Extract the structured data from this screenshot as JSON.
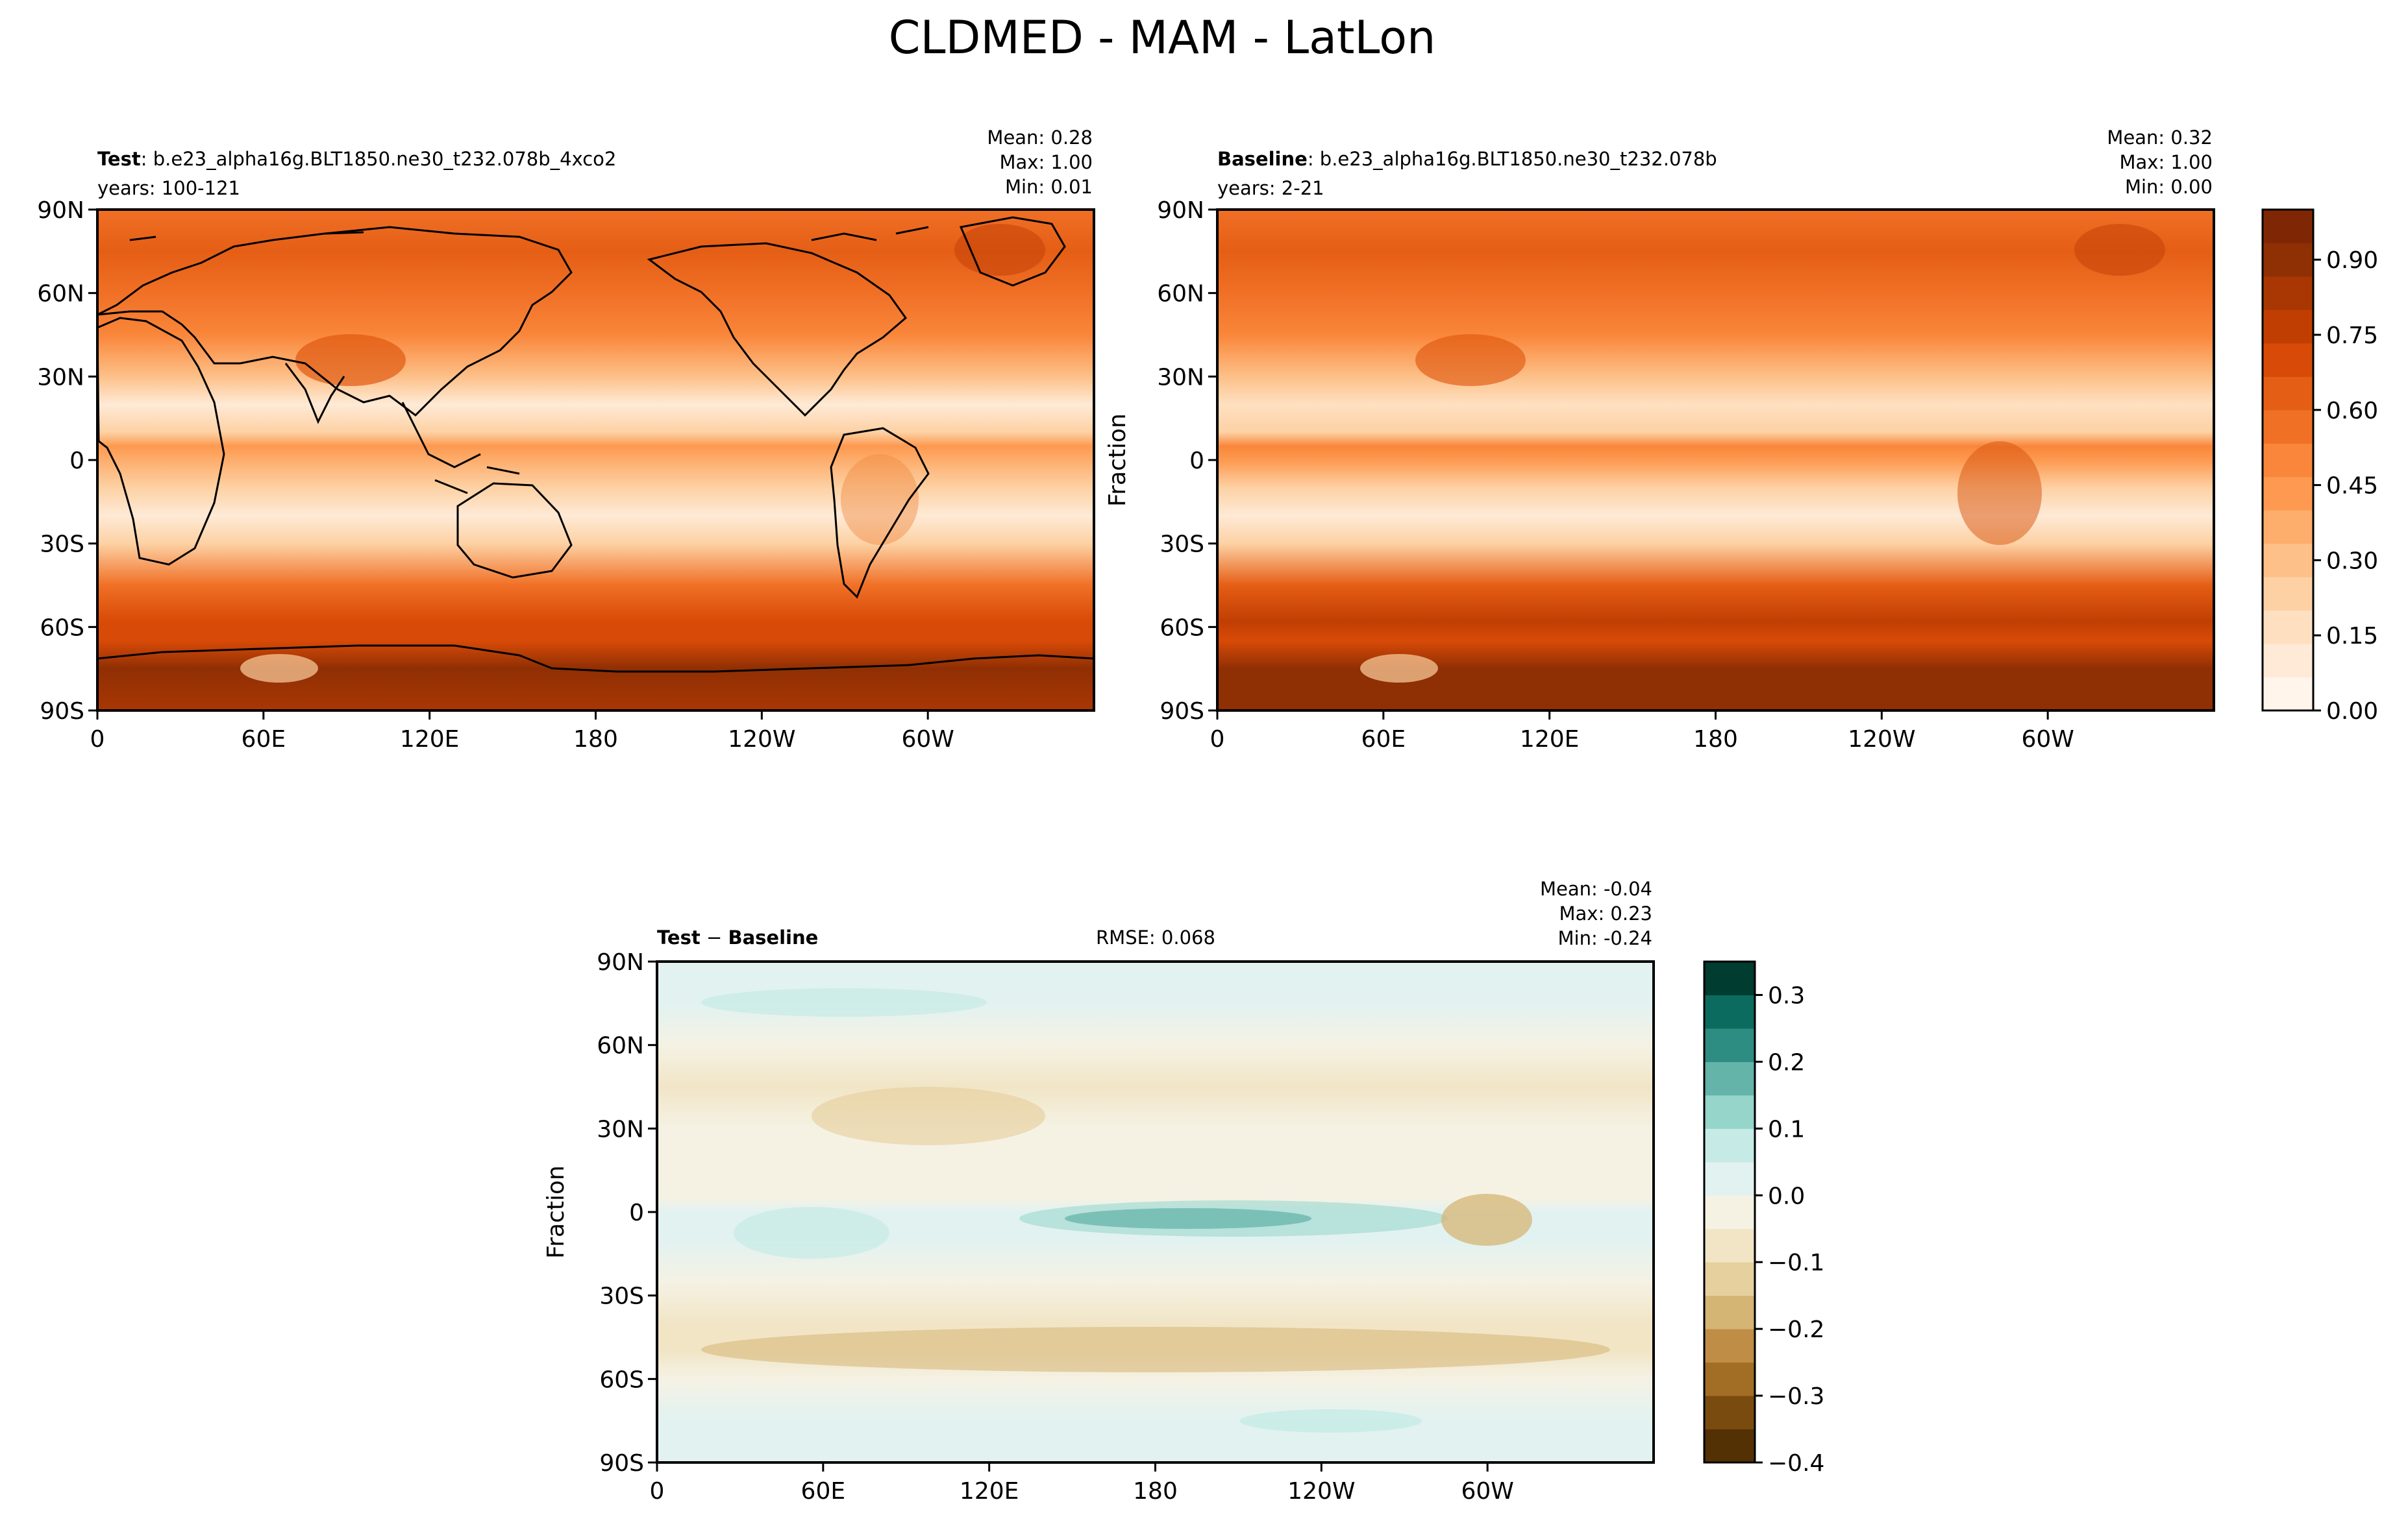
{
  "figure_title": "CLDMED - MAM - LatLon",
  "colors": {
    "seq": [
      "#fff5eb",
      "#feead6",
      "#fee0c1",
      "#fdd1a4",
      "#fdc088",
      "#fdad6c",
      "#fd9950",
      "#f9863a",
      "#f07026",
      "#e55e15",
      "#d84a07",
      "#c13e03",
      "#a93703",
      "#8f2f04",
      "#7f2704"
    ],
    "div": [
      "#543005",
      "#7a4b0f",
      "#a26d24",
      "#bf8d45",
      "#d5b574",
      "#e6d09e",
      "#f1e5c6",
      "#f5f2e4",
      "#e2f2f1",
      "#c6ebe6",
      "#96d5ca",
      "#64b4aa",
      "#2e8d83",
      "#0b6b5e",
      "#003c30"
    ]
  },
  "chart_data": [
    {
      "panel": "test",
      "type": "heatmap",
      "name_bold": "Test",
      "name_rest": ": b.e23_alpha16g.BLT1850.ne30_t232.078b_4xco2",
      "years": "years: 100-121",
      "stats": [
        "Mean:  0.28",
        "Max:  1.00",
        "Min:  0.01"
      ],
      "ylabel": "",
      "xticks": [
        "0",
        "60E",
        "120E",
        "180",
        "120W",
        "60W"
      ],
      "yticks": [
        "90N",
        "60N",
        "30N",
        "0",
        "30S",
        "60S",
        "90S"
      ],
      "vmin": 0,
      "vmax": 1,
      "zonal_profile": [
        {
          "lat": 90,
          "v": 0.55
        },
        {
          "lat": 75,
          "v": 0.62
        },
        {
          "lat": 60,
          "v": 0.57
        },
        {
          "lat": 45,
          "v": 0.48
        },
        {
          "lat": 30,
          "v": 0.28
        },
        {
          "lat": 20,
          "v": 0.1
        },
        {
          "lat": 10,
          "v": 0.22
        },
        {
          "lat": 5,
          "v": 0.45
        },
        {
          "lat": 0,
          "v": 0.38
        },
        {
          "lat": -10,
          "v": 0.2
        },
        {
          "lat": -20,
          "v": 0.1
        },
        {
          "lat": -30,
          "v": 0.22
        },
        {
          "lat": -45,
          "v": 0.55
        },
        {
          "lat": -58,
          "v": 0.72
        },
        {
          "lat": -65,
          "v": 0.68
        },
        {
          "lat": -75,
          "v": 0.88
        },
        {
          "lat": -90,
          "v": 0.85
        }
      ]
    },
    {
      "panel": "baseline",
      "type": "heatmap",
      "name_bold": "Baseline",
      "name_rest": ": b.e23_alpha16g.BLT1850.ne30_t232.078b",
      "years": "years: 2-21",
      "stats": [
        "Mean:  0.32",
        "Max:  1.00",
        "Min:  0.00"
      ],
      "ylabel": "Fraction",
      "xticks": [
        "0",
        "60E",
        "120E",
        "180",
        "120W",
        "60W"
      ],
      "yticks": [
        "90N",
        "60N",
        "30N",
        "0",
        "30S",
        "60S",
        "90S"
      ],
      "vmin": 0,
      "vmax": 1,
      "zonal_profile": [
        {
          "lat": 90,
          "v": 0.58
        },
        {
          "lat": 75,
          "v": 0.63
        },
        {
          "lat": 60,
          "v": 0.58
        },
        {
          "lat": 45,
          "v": 0.52
        },
        {
          "lat": 30,
          "v": 0.32
        },
        {
          "lat": 20,
          "v": 0.14
        },
        {
          "lat": 10,
          "v": 0.26
        },
        {
          "lat": 5,
          "v": 0.5
        },
        {
          "lat": 0,
          "v": 0.42
        },
        {
          "lat": -10,
          "v": 0.24
        },
        {
          "lat": -20,
          "v": 0.13
        },
        {
          "lat": -30,
          "v": 0.26
        },
        {
          "lat": -45,
          "v": 0.62
        },
        {
          "lat": -58,
          "v": 0.76
        },
        {
          "lat": -65,
          "v": 0.72
        },
        {
          "lat": -75,
          "v": 0.9
        },
        {
          "lat": -90,
          "v": 0.88
        }
      ],
      "colorbar": {
        "ticks": [
          "0.00",
          "0.15",
          "0.30",
          "0.45",
          "0.60",
          "0.75",
          "0.90"
        ],
        "tick_values": [
          0,
          0.15,
          0.3,
          0.45,
          0.6,
          0.75,
          0.9
        ],
        "range": [
          0,
          1
        ]
      }
    },
    {
      "panel": "diff",
      "type": "heatmap",
      "name_bold": "Test",
      "name_sep": " − ",
      "name_bold2": "Baseline",
      "rmse": "RMSE: 0.068",
      "stats": [
        "Mean: -0.04",
        "Max:  0.23",
        "Min: -0.24"
      ],
      "ylabel": "Fraction",
      "xticks": [
        "0",
        "60E",
        "120E",
        "180",
        "120W",
        "60W"
      ],
      "yticks": [
        "90N",
        "60N",
        "30N",
        "0",
        "30S",
        "60S",
        "90S"
      ],
      "vmin": -0.4,
      "vmax": 0.35,
      "zonal_profile": [
        {
          "lat": 90,
          "v": 0.0
        },
        {
          "lat": 75,
          "v": 0.03
        },
        {
          "lat": 60,
          "v": -0.02
        },
        {
          "lat": 45,
          "v": -0.06
        },
        {
          "lat": 30,
          "v": -0.05
        },
        {
          "lat": 15,
          "v": -0.02
        },
        {
          "lat": 5,
          "v": -0.03
        },
        {
          "lat": 0,
          "v": 0.0
        },
        {
          "lat": -10,
          "v": 0.01
        },
        {
          "lat": -25,
          "v": -0.05
        },
        {
          "lat": -40,
          "v": -0.08
        },
        {
          "lat": -50,
          "v": -0.1
        },
        {
          "lat": -60,
          "v": -0.05
        },
        {
          "lat": -75,
          "v": 0.0
        },
        {
          "lat": -90,
          "v": 0.0
        }
      ],
      "colorbar": {
        "ticks": [
          "0.3",
          "0.2",
          "0.1",
          "0.0",
          "−0.1",
          "−0.2",
          "−0.3",
          "−0.4"
        ],
        "tick_values": [
          0.3,
          0.2,
          0.1,
          0.0,
          -0.1,
          -0.2,
          -0.3,
          -0.4
        ],
        "range": [
          -0.4,
          0.35
        ]
      }
    }
  ]
}
